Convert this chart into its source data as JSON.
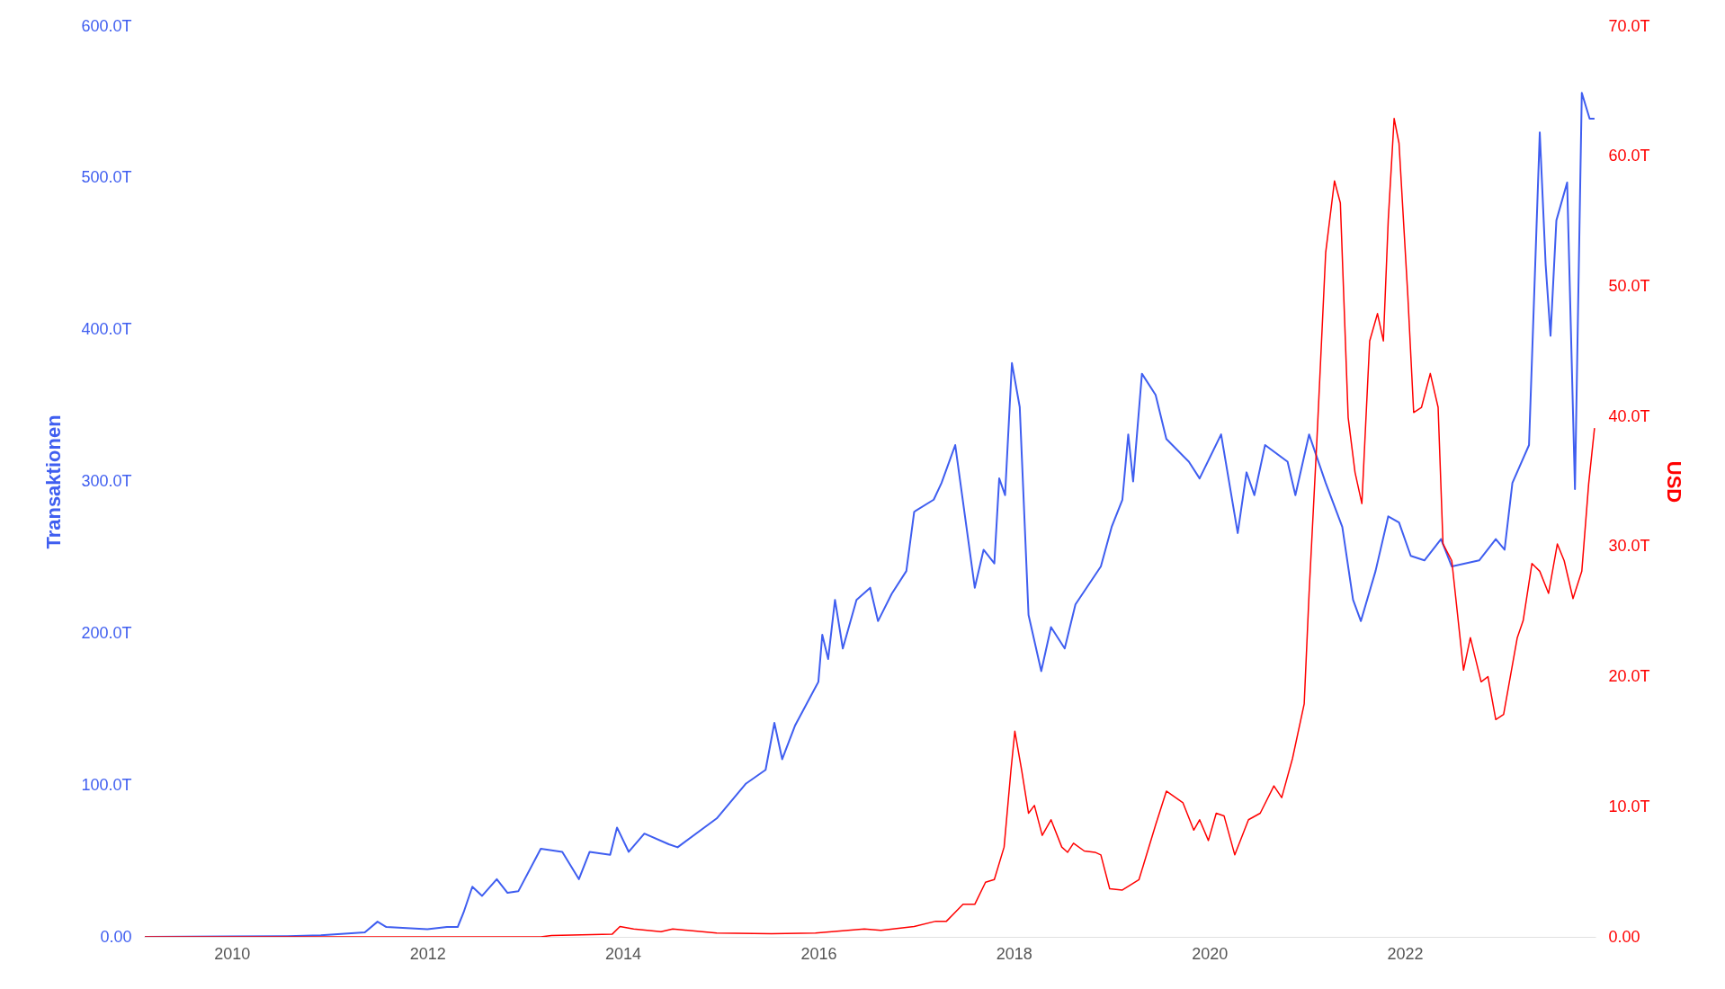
{
  "chart_data": {
    "type": "line",
    "ylabel": "Transaktionen",
    "y2label": "USD",
    "xlim": [
      2009.1,
      2023.95
    ],
    "xticks": [
      2010,
      2012,
      2014,
      2016,
      2018,
      2020,
      2022
    ],
    "ylim": [
      0,
      600
    ],
    "yticks": [
      {
        "value": 0,
        "label": "0.00"
      },
      {
        "value": 100,
        "label": "100.0T"
      },
      {
        "value": 200,
        "label": "200.0T"
      },
      {
        "value": 300,
        "label": "300.0T"
      },
      {
        "value": 400,
        "label": "400.0T"
      },
      {
        "value": 500,
        "label": "500.0T"
      },
      {
        "value": 600,
        "label": "600.0T"
      }
    ],
    "y2lim": [
      0,
      70
    ],
    "y2ticks": [
      {
        "value": 0,
        "label": "0.00"
      },
      {
        "value": 10,
        "label": "10.0T"
      },
      {
        "value": 20,
        "label": "20.0T"
      },
      {
        "value": 30,
        "label": "30.0T"
      },
      {
        "value": 40,
        "label": "40.0T"
      },
      {
        "value": 50,
        "label": "50.0T"
      },
      {
        "value": 60,
        "label": "60.0T"
      },
      {
        "value": 70,
        "label": "70.0T"
      }
    ],
    "series": [
      {
        "color": "#3f5ef0",
        "x": [
          2009.11,
          2010.57,
          2010.91,
          2011.36,
          2011.49,
          2011.58,
          2012.0,
          2012.2,
          2012.31,
          2012.37,
          2012.46,
          2012.56,
          2012.71,
          2012.82,
          2012.93,
          2013.16,
          2013.38,
          2013.55,
          2013.66,
          2013.87,
          2013.94,
          2014.06,
          2014.22,
          2014.47,
          2014.56,
          2014.96,
          2015.26,
          2015.46,
          2015.55,
          2015.63,
          2015.76,
          2016.0,
          2016.04,
          2016.1,
          2016.17,
          2016.25,
          2016.39,
          2016.53,
          2016.61,
          2016.75,
          2016.9,
          2016.98,
          2017.18,
          2017.26,
          2017.4,
          2017.6,
          2017.69,
          2017.8,
          2017.85,
          2017.91,
          2017.98,
          2018.06,
          2018.15,
          2018.28,
          2018.38,
          2018.52,
          2018.63,
          2018.89,
          2019.0,
          2019.11,
          2019.17,
          2019.22,
          2019.31,
          2019.45,
          2019.56,
          2019.79,
          2019.9,
          2020.12,
          2020.29,
          2020.38,
          2020.46,
          2020.57,
          2020.8,
          2020.88,
          2021.02,
          2021.19,
          2021.36,
          2021.47,
          2021.55,
          2021.7,
          2021.83,
          2021.94,
          2022.06,
          2022.2,
          2022.37,
          2022.48,
          2022.76,
          2022.93,
          2023.02,
          2023.1,
          2023.27,
          2023.38,
          2023.44,
          2023.49,
          2023.55,
          2023.66,
          2023.74,
          2023.81,
          2023.89,
          2023.94
        ],
        "values": [
          0,
          0.5,
          1,
          3,
          10,
          6.5,
          5,
          6.5,
          6.5,
          16,
          33,
          27,
          38,
          29,
          30,
          58,
          56,
          38,
          56,
          54,
          72,
          56,
          68,
          61,
          59,
          78,
          101,
          110,
          141,
          117,
          139,
          168,
          199,
          183,
          222,
          190,
          222,
          230,
          208,
          226,
          241,
          280,
          288,
          299,
          324,
          230,
          255,
          246,
          302,
          291,
          378,
          349,
          212,
          175,
          204,
          190,
          219,
          244,
          270,
          288,
          331,
          300,
          371,
          357,
          328,
          313,
          302,
          331,
          266,
          306,
          291,
          324,
          313,
          291,
          331,
          299,
          270,
          222,
          208,
          241,
          277,
          273,
          251,
          248,
          262,
          244,
          248,
          262,
          255,
          299,
          324,
          530,
          443,
          396,
          472,
          497,
          295,
          556,
          539,
          539
        ],
        "axis": "y"
      },
      {
        "color": "#ff0000",
        "x": [
          2009.11,
          2013.16,
          2013.27,
          2013.89,
          2013.97,
          2014.11,
          2014.39,
          2014.51,
          2014.96,
          2015.52,
          2015.97,
          2016.47,
          2016.64,
          2016.98,
          2017.2,
          2017.31,
          2017.48,
          2017.6,
          2017.71,
          2017.8,
          2017.9,
          2017.97,
          2018.01,
          2018.08,
          2018.15,
          2018.21,
          2018.29,
          2018.38,
          2018.49,
          2018.55,
          2018.61,
          2018.72,
          2018.83,
          2018.89,
          2018.98,
          2019.11,
          2019.28,
          2019.45,
          2019.56,
          2019.73,
          2019.84,
          2019.9,
          2019.99,
          2020.07,
          2020.15,
          2020.26,
          2020.4,
          2020.52,
          2020.66,
          2020.74,
          2020.85,
          2020.97,
          2021.02,
          2021.1,
          2021.19,
          2021.28,
          2021.34,
          2021.42,
          2021.49,
          2021.56,
          2021.64,
          2021.72,
          2021.78,
          2021.83,
          2021.89,
          2021.94,
          2022.03,
          2022.09,
          2022.17,
          2022.26,
          2022.34,
          2022.39,
          2022.48,
          2022.6,
          2022.67,
          2022.78,
          2022.85,
          2022.93,
          2023.01,
          2023.15,
          2023.21,
          2023.3,
          2023.38,
          2023.47,
          2023.56,
          2023.63,
          2023.72,
          2023.81,
          2023.88,
          2023.94
        ],
        "values": [
          0,
          0,
          0.1,
          0.2,
          0.8,
          0.6,
          0.4,
          0.6,
          0.3,
          0.25,
          0.3,
          0.6,
          0.5,
          0.8,
          1.2,
          1.2,
          2.5,
          2.5,
          4.2,
          4.4,
          6.9,
          12.8,
          15.8,
          12.8,
          9.5,
          10.1,
          7.8,
          9,
          6.9,
          6.5,
          7.2,
          6.6,
          6.5,
          6.3,
          3.7,
          3.6,
          4.4,
          8.6,
          11.2,
          10.3,
          8.2,
          9,
          7.4,
          9.5,
          9.3,
          6.3,
          9,
          9.5,
          11.6,
          10.7,
          13.7,
          17.9,
          26.4,
          38.2,
          52.6,
          58.1,
          56.4,
          39.9,
          35.7,
          33.3,
          45.8,
          47.9,
          45.8,
          55.1,
          62.9,
          61,
          49.3,
          40.3,
          40.7,
          43.3,
          40.7,
          30.2,
          28.9,
          20.5,
          23,
          19.6,
          20,
          16.7,
          17.1,
          23,
          24.3,
          28.7,
          28.1,
          26.4,
          30.2,
          28.9,
          26,
          28.1,
          34.8,
          39.1
        ],
        "axis": "y2"
      }
    ]
  }
}
